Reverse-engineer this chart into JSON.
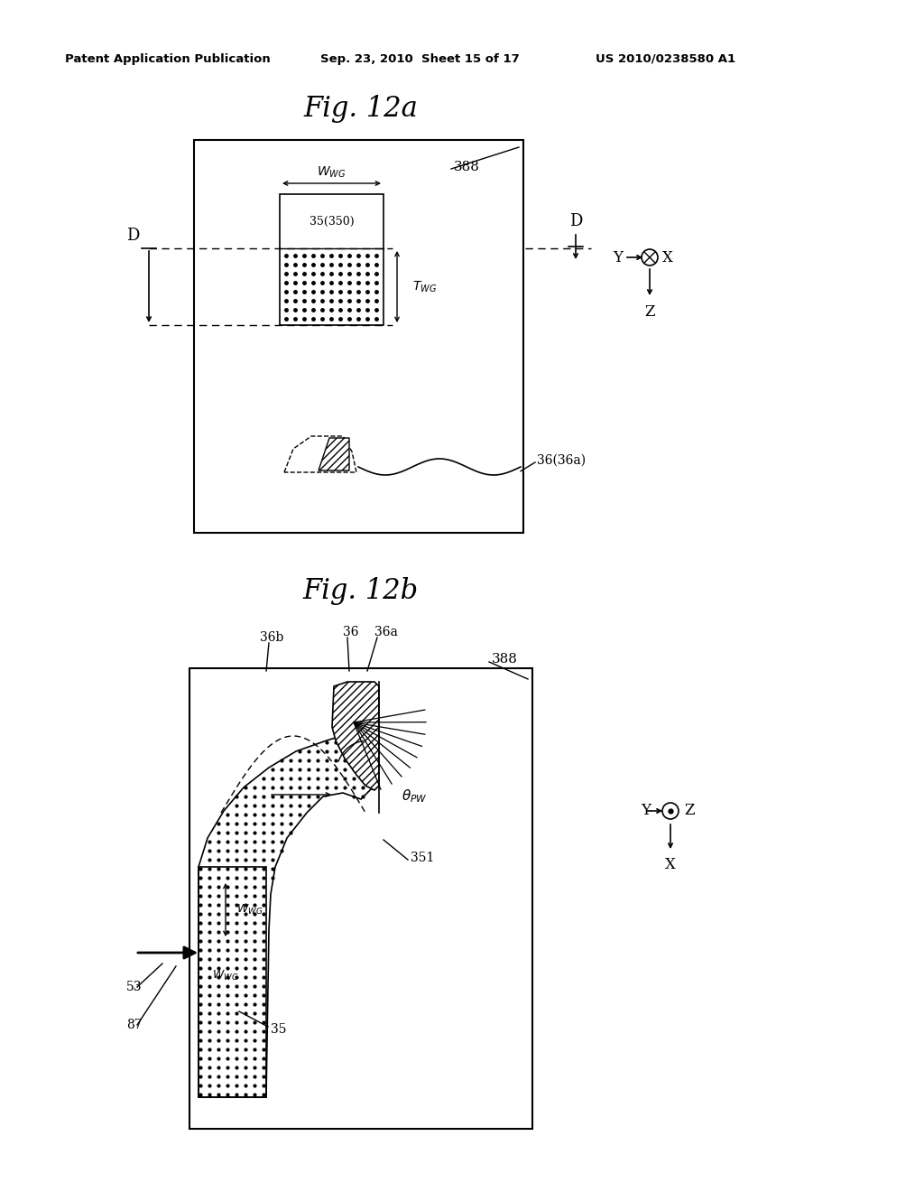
{
  "header_left": "Patent Application Publication",
  "header_mid": "Sep. 23, 2010  Sheet 15 of 17",
  "header_right": "US 2010/0238580 A1",
  "fig12a_title": "Fig. 12a",
  "fig12b_title": "Fig. 12b",
  "bg_color": "#ffffff",
  "line_color": "#000000"
}
